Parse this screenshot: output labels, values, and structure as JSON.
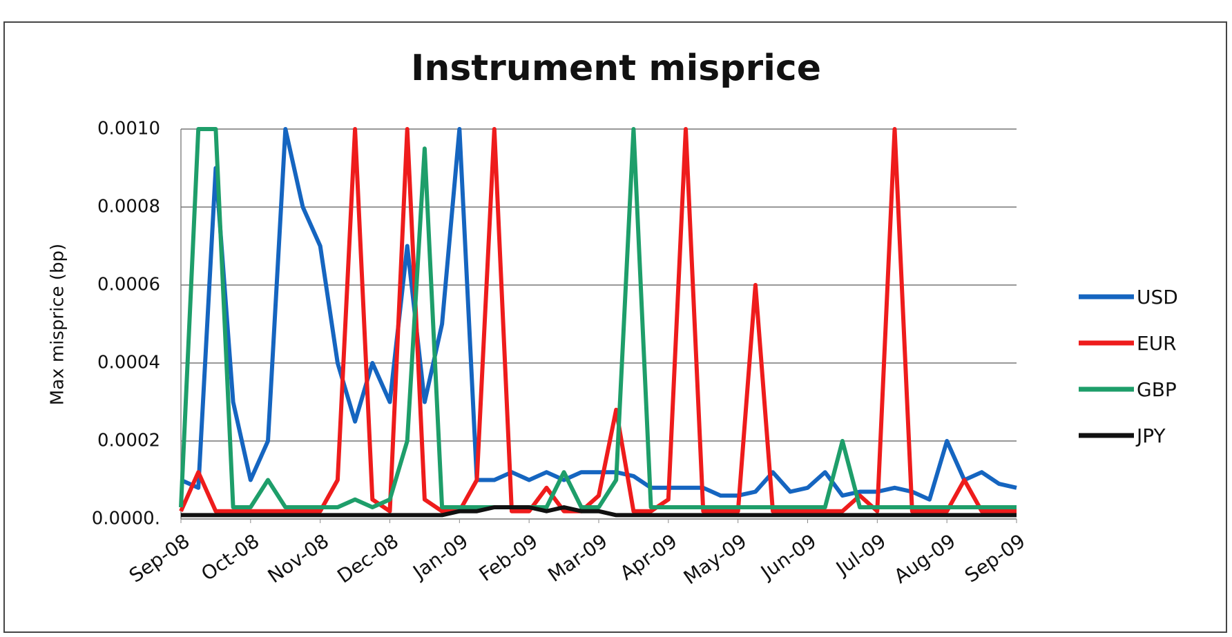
{
  "chart_data": {
    "type": "line",
    "title": "Instrument misprice",
    "y_label": "Max misprice (bp)",
    "categories": [
      "Sep-08",
      null,
      null,
      null,
      "Oct-08",
      null,
      null,
      null,
      "Nov-08",
      null,
      null,
      null,
      "Dec-08",
      null,
      null,
      null,
      "Jan-09",
      null,
      null,
      null,
      "Feb-09",
      null,
      null,
      null,
      "Mar-09",
      null,
      null,
      null,
      "Apr-09",
      null,
      null,
      null,
      "May-09",
      null,
      null,
      null,
      "Jun-09",
      null,
      null,
      null,
      "Jul-09",
      null,
      null,
      null,
      "Aug-09",
      null,
      null,
      null,
      "Sep-09"
    ],
    "series": [
      {
        "name": "USD",
        "color": "#1565c0",
        "values": [
          0.0001,
          8e-05,
          0.0009,
          0.0003,
          0.0001,
          0.0002,
          0.001,
          0.0008,
          0.0007,
          0.0004,
          0.00025,
          0.0004,
          0.0003,
          0.0007,
          0.0003,
          0.0005,
          0.001,
          0.0001,
          0.0001,
          0.00012,
          0.0001,
          0.00012,
          0.0001,
          0.00012,
          0.00012,
          0.00012,
          0.00011,
          8e-05,
          8e-05,
          8e-05,
          8e-05,
          6e-05,
          6e-05,
          7e-05,
          0.00012,
          7e-05,
          8e-05,
          0.00012,
          6e-05,
          7e-05,
          7e-05,
          8e-05,
          7e-05,
          5e-05,
          0.0002,
          0.0001,
          0.00012,
          9e-05,
          8e-05
        ]
      },
      {
        "name": "EUR",
        "color": "#ee1c1c",
        "values": [
          2e-05,
          0.00012,
          2e-05,
          2e-05,
          2e-05,
          2e-05,
          2e-05,
          2e-05,
          2e-05,
          0.0001,
          0.001,
          5e-05,
          2e-05,
          0.001,
          5e-05,
          2e-05,
          2e-05,
          0.0001,
          0.001,
          2e-05,
          2e-05,
          8e-05,
          2e-05,
          2e-05,
          6e-05,
          0.00028,
          2e-05,
          2e-05,
          5e-05,
          0.001,
          2e-05,
          2e-05,
          2e-05,
          0.0006,
          2e-05,
          2e-05,
          2e-05,
          2e-05,
          2e-05,
          6e-05,
          2e-05,
          0.001,
          2e-05,
          2e-05,
          2e-05,
          0.0001,
          2e-05,
          2e-05,
          2e-05
        ]
      },
      {
        "name": "GBP",
        "color": "#1e9e6a",
        "values": [
          3e-05,
          0.001,
          0.001,
          3e-05,
          3e-05,
          0.0001,
          3e-05,
          3e-05,
          3e-05,
          3e-05,
          5e-05,
          3e-05,
          5e-05,
          0.0002,
          0.00095,
          3e-05,
          3e-05,
          3e-05,
          3e-05,
          3e-05,
          3e-05,
          3e-05,
          0.00012,
          3e-05,
          3e-05,
          0.0001,
          0.001,
          3e-05,
          3e-05,
          3e-05,
          3e-05,
          3e-05,
          3e-05,
          3e-05,
          3e-05,
          3e-05,
          3e-05,
          3e-05,
          0.0002,
          3e-05,
          3e-05,
          3e-05,
          3e-05,
          3e-05,
          3e-05,
          3e-05,
          3e-05,
          3e-05,
          3e-05
        ]
      },
      {
        "name": "JPY",
        "color": "#111111",
        "values": [
          1e-05,
          1e-05,
          1e-05,
          1e-05,
          1e-05,
          1e-05,
          1e-05,
          1e-05,
          1e-05,
          1e-05,
          1e-05,
          1e-05,
          1e-05,
          1e-05,
          1e-05,
          1e-05,
          2e-05,
          2e-05,
          3e-05,
          3e-05,
          3e-05,
          2e-05,
          3e-05,
          2e-05,
          2e-05,
          1e-05,
          1e-05,
          1e-05,
          1e-05,
          1e-05,
          1e-05,
          1e-05,
          1e-05,
          1e-05,
          1e-05,
          1e-05,
          1e-05,
          1e-05,
          1e-05,
          1e-05,
          1e-05,
          1e-05,
          1e-05,
          1e-05,
          1e-05,
          1e-05,
          1e-05,
          1e-05,
          1e-05
        ]
      }
    ],
    "ylim": [
      0,
      0.001
    ],
    "yticks": [
      {
        "value": 0,
        "label": "0.0000."
      },
      {
        "value": 0.0002,
        "label": "0.0002"
      },
      {
        "value": 0.0004,
        "label": "0.0004"
      },
      {
        "value": 0.0006,
        "label": "0.0006"
      },
      {
        "value": 0.0008,
        "label": "0.0008"
      },
      {
        "value": 0.001,
        "label": "0.0010"
      }
    ],
    "grid": true,
    "legend": "right"
  }
}
